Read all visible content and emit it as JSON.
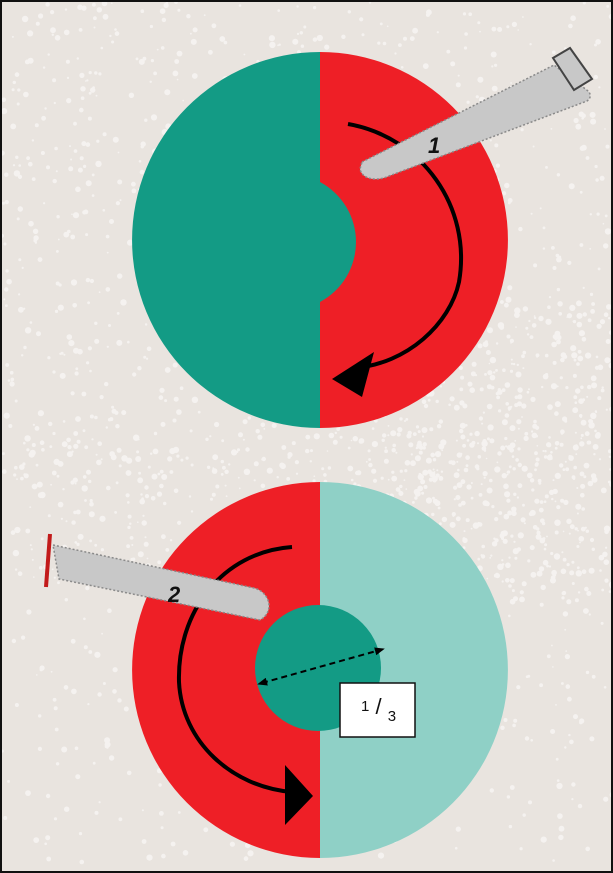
{
  "diagram": {
    "step1": {
      "label": "1"
    },
    "step2": {
      "label": "2"
    },
    "fraction": {
      "numerator": "1",
      "slash": "/",
      "denominator": "3"
    }
  },
  "colors": {
    "background": "#e9e4df",
    "texture": "#ffffff",
    "teal": "#139b85",
    "light_teal": "#8fd0c6",
    "red": "#ee1f26",
    "probe": "#c8c8c8",
    "arrow": "#000000"
  },
  "icons": [
    "probe-1-icon",
    "probe-2-icon",
    "rotation-arrow-icon",
    "diameter-arrow-icon"
  ]
}
